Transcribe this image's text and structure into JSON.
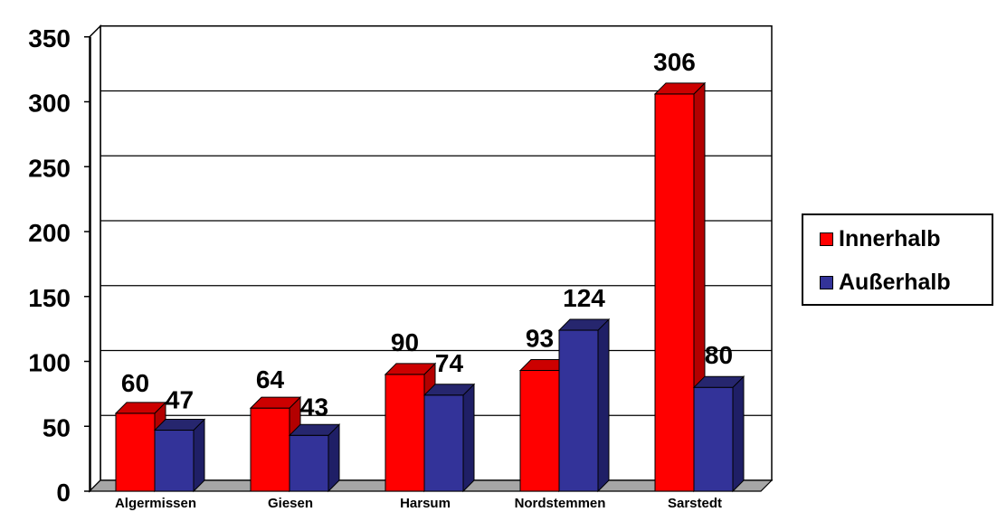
{
  "colors": {
    "innerhalb": "#ff0000",
    "innerhalb_side": "#b30000",
    "innerhalb_top": "#cc0000",
    "ausserhalb": "#333399",
    "ausserhalb_side": "#1f1f66",
    "ausserhalb_top": "#26266e",
    "floor": "#a6a6a6"
  },
  "chart_data": {
    "type": "bar",
    "categories": [
      "Algermissen",
      "Giesen",
      "Harsum",
      "Nordstemmen",
      "Sarstedt"
    ],
    "series": [
      {
        "name": "Innerhalb",
        "values": [
          60,
          64,
          90,
          93,
          306
        ]
      },
      {
        "name": "Außerhalb",
        "values": [
          47,
          43,
          74,
          124,
          80
        ]
      }
    ],
    "ylim": [
      0,
      350
    ],
    "yticks": [
      "0",
      "50",
      "100",
      "150",
      "200",
      "250",
      "300",
      "350"
    ],
    "grid": true,
    "legend_position": "right",
    "legend": [
      "Innerhalb",
      "Außerhalb"
    ],
    "title": "",
    "xlabel": "",
    "ylabel": ""
  }
}
